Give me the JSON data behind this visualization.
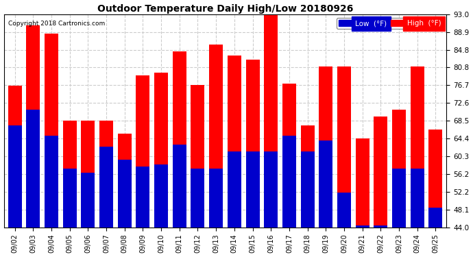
{
  "title": "Outdoor Temperature Daily High/Low 20180926",
  "copyright": "Copyright 2018 Cartronics.com",
  "dates": [
    "09/02",
    "09/03",
    "09/04",
    "09/05",
    "09/06",
    "09/07",
    "09/08",
    "09/09",
    "09/10",
    "09/11",
    "09/12",
    "09/13",
    "09/14",
    "09/15",
    "09/16",
    "09/17",
    "09/18",
    "09/19",
    "09/20",
    "09/21",
    "09/22",
    "09/23",
    "09/24",
    "09/25"
  ],
  "high": [
    76.5,
    90.5,
    88.5,
    68.5,
    68.5,
    68.5,
    65.5,
    79.0,
    79.5,
    84.5,
    76.7,
    86.0,
    83.5,
    82.5,
    93.0,
    77.0,
    67.5,
    81.0,
    81.0,
    64.5,
    69.5,
    71.0,
    81.0,
    66.5
  ],
  "low": [
    67.5,
    71.0,
    65.0,
    57.5,
    56.5,
    62.5,
    59.5,
    58.0,
    58.5,
    63.0,
    57.5,
    57.5,
    61.5,
    61.5,
    61.5,
    65.0,
    61.5,
    64.0,
    52.0,
    44.5,
    44.5,
    57.5,
    57.5,
    48.5
  ],
  "high_color": "#ff0000",
  "low_color": "#0000cc",
  "bg_color": "#ffffff",
  "plot_bg_color": "#ffffff",
  "ylim_min": 44.0,
  "ylim_max": 93.0,
  "yticks": [
    44.0,
    48.1,
    52.2,
    56.2,
    60.3,
    64.4,
    68.5,
    72.6,
    76.7,
    80.8,
    84.8,
    88.9,
    93.0
  ],
  "grid_color": "#cccccc",
  "legend_low_label": "Low  (°F)",
  "legend_high_label": "High  (°F)",
  "bar_width": 0.75
}
